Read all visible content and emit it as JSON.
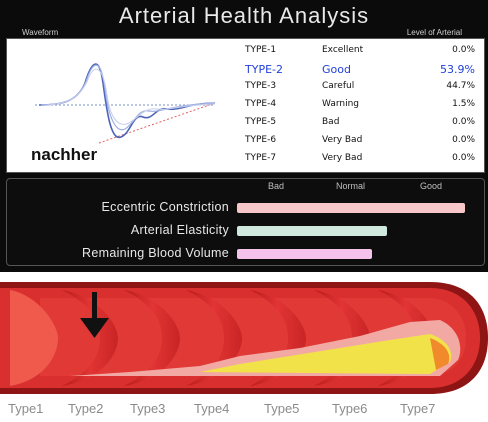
{
  "header": {
    "title": "Arterial Health Analysis",
    "left_caption": "Waveform",
    "right_caption": "Level of Arterial"
  },
  "waveform": {
    "annotation": "nachher"
  },
  "types": [
    {
      "name": "TYPE-1",
      "level": "Excellent",
      "value": "0.0%"
    },
    {
      "name": "TYPE-2",
      "level": "Good",
      "value": "53.9%",
      "selected": true
    },
    {
      "name": "TYPE-3",
      "level": "Careful",
      "value": "44.7%"
    },
    {
      "name": "TYPE-4",
      "level": "Warning",
      "value": "1.5%"
    },
    {
      "name": "TYPE-5",
      "level": "Bad",
      "value": "0.0%"
    },
    {
      "name": "TYPE-6",
      "level": "Very Bad",
      "value": "0.0%"
    },
    {
      "name": "TYPE-7",
      "level": "Very Bad",
      "value": "0.0%"
    }
  ],
  "scale": {
    "bad": "Bad",
    "normal": "Normal",
    "good": "Good"
  },
  "metrics": [
    {
      "label": "Eccentric Constriction",
      "fraction": 1.0,
      "color": "#f6c6c9"
    },
    {
      "label": "Arterial Elasticity",
      "fraction": 0.66,
      "color": "#cfe9de"
    },
    {
      "label": "Remaining Blood Volume",
      "fraction": 0.59,
      "color": "#f4c2ea"
    }
  ],
  "artery_types": [
    "Type1",
    "Type2",
    "Type3",
    "Type4",
    "Type5",
    "Type6",
    "Type7"
  ],
  "colors": {
    "artery_red": "#d92b2b",
    "plaque_yellow": "#f2e24a",
    "selected_type": "#2140d8"
  },
  "icons": {
    "pointer": "down-arrow-icon"
  }
}
